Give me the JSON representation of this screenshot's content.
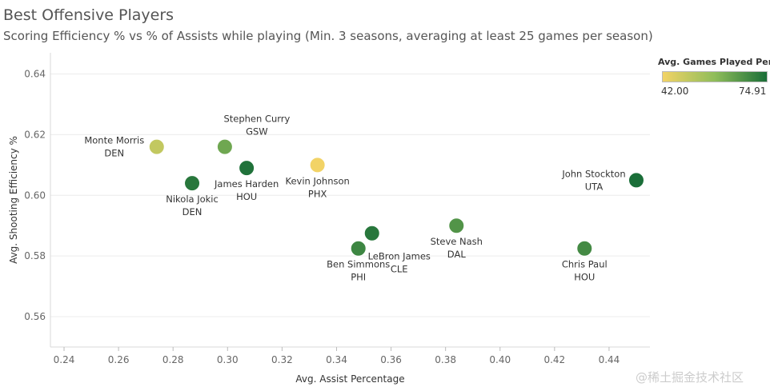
{
  "header": {
    "title": "Best Offensive Players",
    "subtitle": "Scoring Efficiency % vs % of Assists while playing (Min. 3 seasons, averaging at least 25 games per season)"
  },
  "legend": {
    "title": "Avg. Games Played Per ..",
    "min_label": "42.00",
    "max_label": "74.91",
    "color_low": "#f2d366",
    "color_mid": "#8fbd5a",
    "color_high": "#1a6e38"
  },
  "watermark": "@稀土掘金技术社区",
  "chart_data": {
    "type": "scatter",
    "xlabel": "Avg. Assist Percentage",
    "ylabel": "Avg. Shooting Efficiency %",
    "xlim": [
      0.235,
      0.455
    ],
    "ylim": [
      0.55,
      0.647
    ],
    "x_ticks": [
      0.24,
      0.26,
      0.28,
      0.3,
      0.32,
      0.34,
      0.36,
      0.38,
      0.4,
      0.42,
      0.44
    ],
    "x_tick_labels": [
      "0.24",
      "0.26",
      "0.28",
      "0.30",
      "0.32",
      "0.34",
      "0.36",
      "0.38",
      "0.40",
      "0.42",
      "0.44"
    ],
    "y_ticks": [
      0.56,
      0.58,
      0.6,
      0.62,
      0.64
    ],
    "y_tick_labels": [
      "0.56",
      "0.58",
      "0.60",
      "0.62",
      "0.64"
    ],
    "grid": true,
    "color_measure": "Avg. Games Played Per Season",
    "color_range": [
      42.0,
      74.91
    ],
    "points": [
      {
        "name": "Monte Morris",
        "team": "DEN",
        "x": 0.274,
        "y": 0.616,
        "games": 50,
        "label_pos": "left"
      },
      {
        "name": "Nikola Jokic",
        "team": "DEN",
        "x": 0.287,
        "y": 0.604,
        "games": 73,
        "label_pos": "below"
      },
      {
        "name": "Stephen Curry",
        "team": "GSW",
        "x": 0.299,
        "y": 0.616,
        "games": 63,
        "label_pos": "above-right"
      },
      {
        "name": "James Harden",
        "team": "HOU",
        "x": 0.307,
        "y": 0.609,
        "games": 74,
        "label_pos": "below"
      },
      {
        "name": "Kevin Johnson",
        "team": "PHX",
        "x": 0.333,
        "y": 0.61,
        "games": 42,
        "label_pos": "below"
      },
      {
        "name": "Ben Simmons",
        "team": "PHI",
        "x": 0.348,
        "y": 0.5825,
        "games": 70,
        "label_pos": "below"
      },
      {
        "name": "LeBron James",
        "team": "CLE",
        "x": 0.353,
        "y": 0.5875,
        "games": 73,
        "label_pos": "below-right"
      },
      {
        "name": "Steve Nash",
        "team": "DAL",
        "x": 0.384,
        "y": 0.59,
        "games": 67,
        "label_pos": "below"
      },
      {
        "name": "John Stockton",
        "team": "UTA",
        "x": 0.45,
        "y": 0.605,
        "games": 74.91,
        "label_pos": "left"
      },
      {
        "name": "Chris Paul",
        "team": "HOU",
        "x": 0.431,
        "y": 0.5825,
        "games": 69,
        "label_pos": "below"
      }
    ]
  }
}
